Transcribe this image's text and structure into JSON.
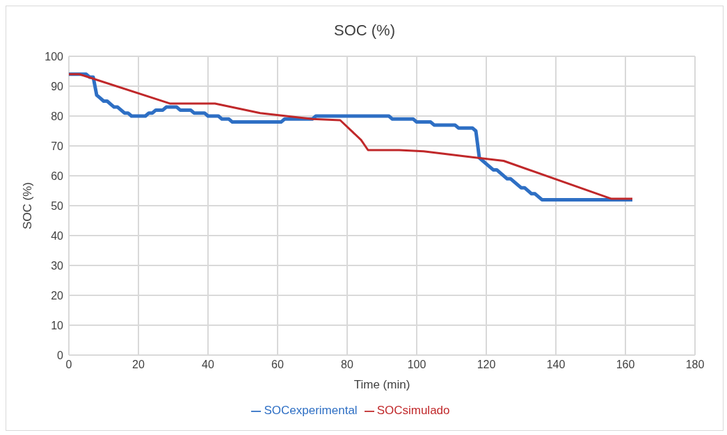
{
  "chart_data": {
    "type": "line",
    "title": "SOC (%)",
    "xlabel": "Time (min)",
    "ylabel": "SOC (%)",
    "xlim": [
      0,
      180
    ],
    "xticks": [
      0,
      20,
      40,
      60,
      80,
      100,
      120,
      140,
      160,
      180
    ],
    "ylim": [
      0,
      100
    ],
    "yticks": [
      0,
      10,
      20,
      30,
      40,
      50,
      60,
      70,
      80,
      90,
      100
    ],
    "grid": true,
    "legend": "bottom",
    "marker": "none",
    "line_style": "solid",
    "series": [
      {
        "name": "SOCexperimental",
        "color": "#2e6fc4",
        "x": [
          0,
          4,
          5,
          6,
          7,
          8,
          9,
          10,
          11,
          12,
          13,
          14,
          15,
          16,
          17,
          18,
          22,
          23,
          24,
          25,
          27,
          28,
          31,
          32,
          35,
          36,
          39,
          40,
          43,
          44,
          46,
          47,
          61,
          62,
          70,
          71,
          92,
          93,
          99,
          100,
          104,
          105,
          111,
          112,
          116,
          117,
          118,
          119,
          120,
          122,
          123,
          126,
          127,
          130,
          131,
          133,
          134,
          136,
          162
        ],
        "values": [
          94,
          94,
          94,
          93,
          93,
          87,
          86,
          85,
          85,
          84,
          83,
          83,
          82,
          81,
          81,
          80,
          80,
          81,
          81,
          82,
          82,
          83,
          83,
          82,
          82,
          81,
          81,
          80,
          80,
          79,
          79,
          78,
          78,
          79,
          79,
          80,
          80,
          79,
          79,
          78,
          78,
          77,
          77,
          76,
          76,
          75,
          66,
          65,
          64,
          62,
          62,
          59,
          59,
          56,
          56,
          54,
          54,
          52,
          52
        ]
      },
      {
        "name": "SOCsimulado",
        "color": "#c0282a",
        "x": [
          0,
          3,
          29,
          42,
          55,
          70,
          78,
          84,
          86,
          95,
          102,
          116,
          125,
          156,
          162
        ],
        "values": [
          94,
          94,
          84.2,
          84.2,
          81,
          79,
          78.6,
          72,
          68.6,
          68.6,
          68.2,
          66.2,
          65,
          52.3,
          52.3
        ]
      }
    ]
  }
}
